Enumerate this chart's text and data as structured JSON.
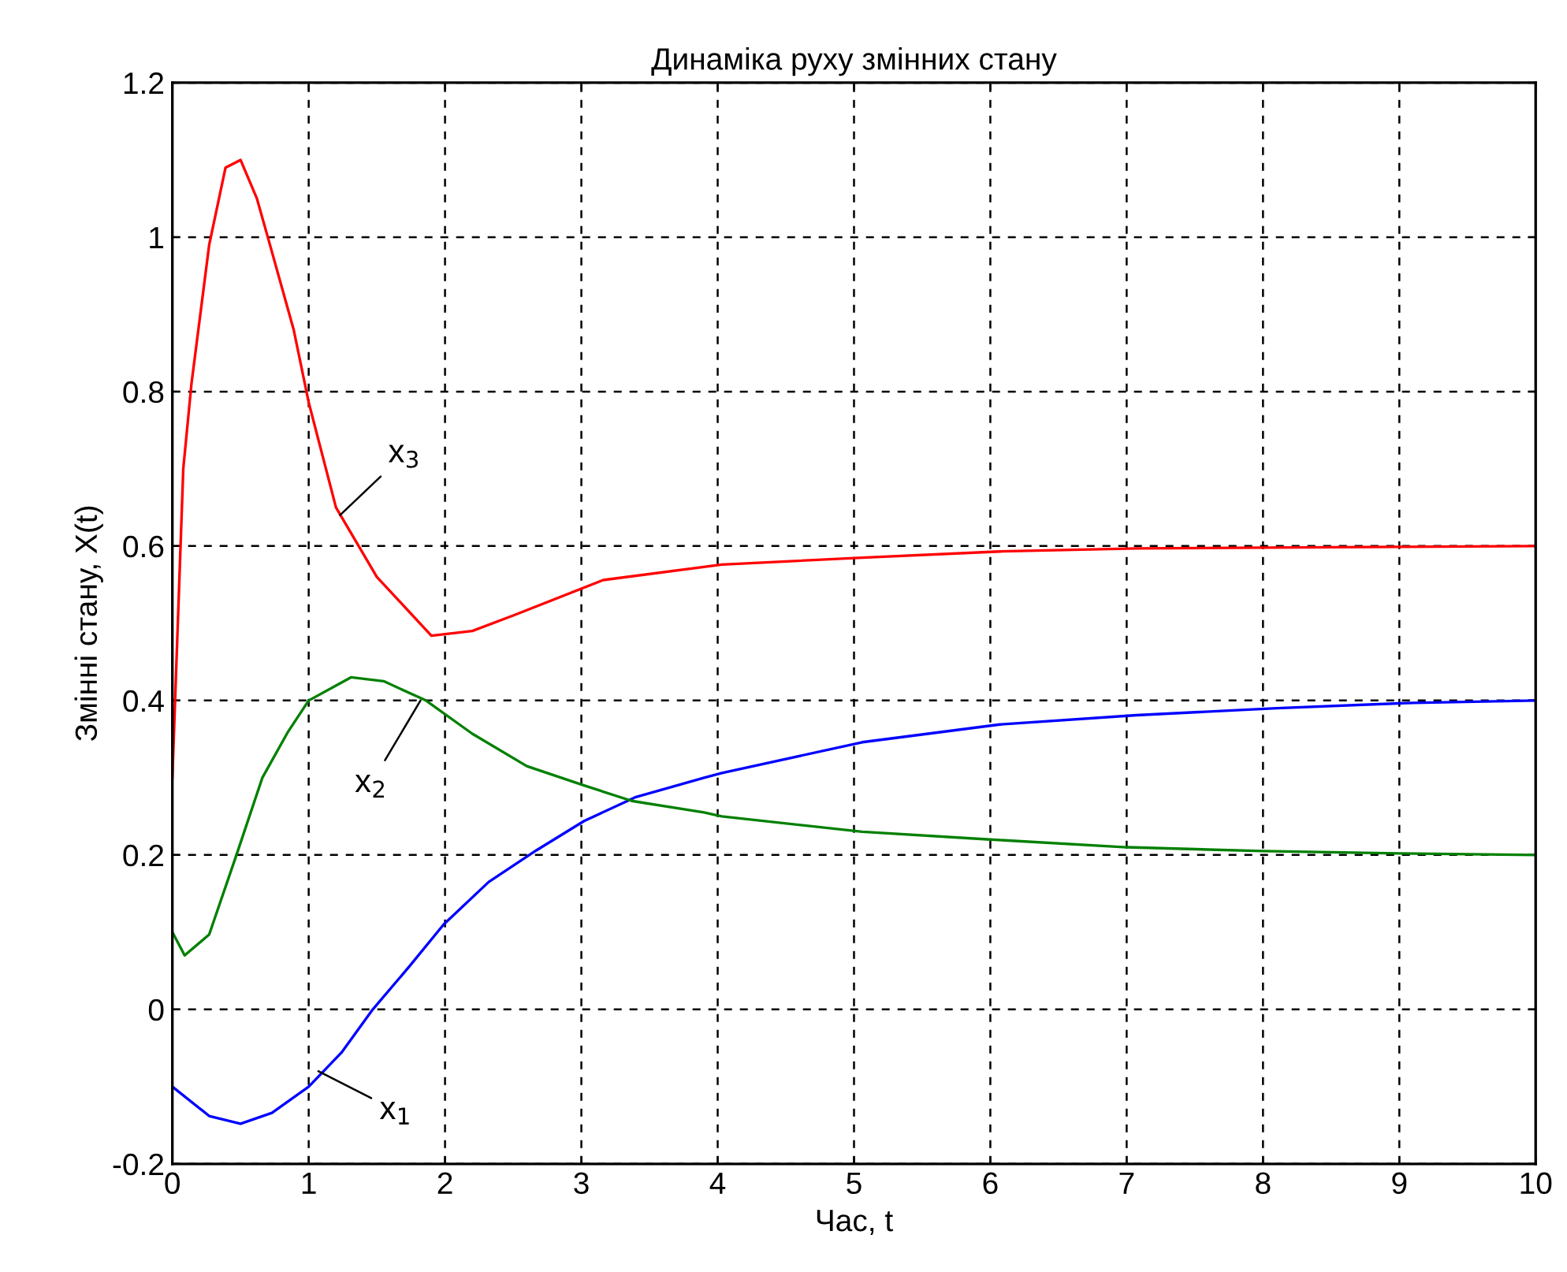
{
  "chart_data": {
    "type": "line",
    "title": "Динаміка руху змінних стану",
    "xlabel": "Час, t",
    "ylabel": "Змінні стану, X(t)",
    "xlim": [
      0,
      10
    ],
    "xticks": [
      0,
      1,
      2,
      3,
      4,
      5,
      6,
      7,
      8,
      9,
      10
    ],
    "ylim": [
      -0.2,
      1.2
    ],
    "yticks": [
      -0.2,
      0,
      0.2,
      0.4,
      0.6,
      0.8,
      1,
      1.2
    ],
    "grid": true,
    "marker": "none",
    "line_style": "solid",
    "series": [
      {
        "color": "#0000ff",
        "x": [
          0,
          0.27,
          0.5,
          0.73,
          1.0,
          1.24,
          1.47,
          1.74,
          1.99,
          2.32,
          2.67,
          3.02,
          3.4,
          3.9,
          4.03,
          5.06,
          6.07,
          7.07,
          8.1,
          9.1,
          10
        ],
        "values": [
          -0.1,
          -0.138,
          -0.148,
          -0.134,
          -0.1,
          -0.056,
          0.0,
          0.056,
          0.11,
          0.165,
          0.206,
          0.244,
          0.275,
          0.3,
          0.306,
          0.346,
          0.369,
          0.381,
          0.39,
          0.397,
          0.4
        ]
      },
      {
        "color": "#008000",
        "x": [
          0,
          0.09,
          0.27,
          0.47,
          0.66,
          0.85,
          1.0,
          1.31,
          1.55,
          1.86,
          2.2,
          2.6,
          3.02,
          3.37,
          3.9,
          4.03,
          5.06,
          6.0,
          7.0,
          8.0,
          9.0,
          10
        ],
        "values": [
          0.1,
          0.07,
          0.097,
          0.2,
          0.3,
          0.36,
          0.4,
          0.43,
          0.425,
          0.4,
          0.357,
          0.315,
          0.29,
          0.27,
          0.255,
          0.25,
          0.23,
          0.22,
          0.21,
          0.205,
          0.202,
          0.2
        ]
      },
      {
        "color": "#ff0000",
        "x": [
          0,
          0.08,
          0.14,
          0.27,
          0.39,
          0.5,
          0.62,
          0.7,
          0.89,
          1.0,
          1.2,
          1.5,
          1.9,
          2.2,
          2.5,
          3.16,
          4.03,
          5.06,
          6.07,
          7.07,
          8.0,
          9.0,
          10
        ],
        "values": [
          0.3,
          0.7,
          0.81,
          0.99,
          1.09,
          1.1,
          1.05,
          1.0,
          0.88,
          0.786,
          0.65,
          0.56,
          0.484,
          0.49,
          0.51,
          0.556,
          0.576,
          0.585,
          0.593,
          0.597,
          0.598,
          0.599,
          0.6
        ]
      }
    ],
    "annotations": [
      {
        "text": "x$_{1}$",
        "x": 1.07,
        "y": -0.08
      },
      {
        "text": "x$_{2}$",
        "x": 1.82,
        "y": 0.4
      },
      {
        "text": "x$_{3}$",
        "x": 1.23,
        "y": 0.64
      }
    ]
  }
}
